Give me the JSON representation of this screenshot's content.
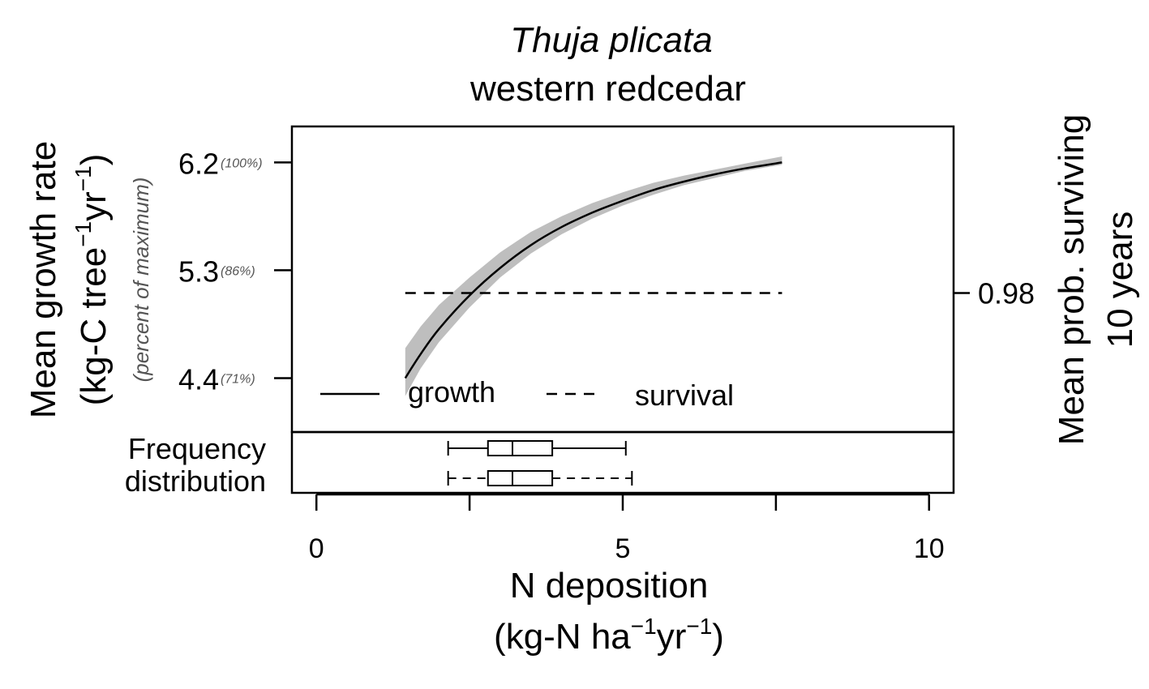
{
  "chart_data": {
    "type": "line",
    "title": "Thuja plicata",
    "subtitle": "western redcedar",
    "xlabel": {
      "line1": "N deposition",
      "line2": {
        "pre": "(kg-N ha",
        "sup1": "−1",
        "mid": "yr",
        "sup2": "−1",
        "post": ")"
      }
    },
    "ylabel_left": {
      "line1": "Mean growth rate",
      "line2": {
        "pre": "(kg-C tree",
        "sup1": "−1",
        "mid": "yr",
        "sup2": "−1",
        "post": ")"
      },
      "line3": "(percent of maximum)"
    },
    "ylabel_right": {
      "line1": "Mean prob. surviving",
      "line2": "10 years"
    },
    "x_ticks": [
      {
        "value": 0,
        "label": "0"
      },
      {
        "value": 2.5,
        "label": ""
      },
      {
        "value": 5,
        "label": "5"
      },
      {
        "value": 7.5,
        "label": ""
      },
      {
        "value": 10,
        "label": "10"
      }
    ],
    "xlim": [
      -0.4,
      10.4
    ],
    "ylim_left": [
      3.95,
      6.5
    ],
    "y_ticks_left": [
      {
        "value": 6.2,
        "label": "6.2",
        "pct": "(100%)"
      },
      {
        "value": 5.3,
        "label": "5.3",
        "pct": "(86%)"
      },
      {
        "value": 4.4,
        "label": "4.4",
        "pct": "(71%)"
      }
    ],
    "y_ticks_right": [
      {
        "value": 0.98,
        "label": "0.98"
      }
    ],
    "series": [
      {
        "name": "growth",
        "style": "solid",
        "color": "#000000",
        "x": [
          1.45,
          1.7,
          2.0,
          2.5,
          3.0,
          3.5,
          4.0,
          4.5,
          5.0,
          5.5,
          6.0,
          6.5,
          7.0,
          7.6
        ],
        "y": [
          4.4,
          4.6,
          4.81,
          5.09,
          5.32,
          5.51,
          5.66,
          5.78,
          5.88,
          5.97,
          6.04,
          6.1,
          6.15,
          6.2
        ],
        "ci_lower": [
          4.25,
          4.48,
          4.7,
          4.99,
          5.24,
          5.44,
          5.6,
          5.73,
          5.84,
          5.93,
          6.01,
          6.07,
          6.13,
          6.18
        ],
        "ci_upper": [
          4.65,
          4.83,
          5.01,
          5.24,
          5.45,
          5.62,
          5.75,
          5.86,
          5.95,
          6.03,
          6.09,
          6.14,
          6.19,
          6.25
        ],
        "ci_color": "#bebebe"
      },
      {
        "name": "survival",
        "style": "dashed",
        "color": "#000000",
        "axis": "right",
        "x": [
          1.45,
          7.6
        ],
        "y": [
          0.98,
          0.98
        ]
      }
    ],
    "legend": {
      "placement": "bottom-left",
      "entries": [
        "growth",
        "survival"
      ]
    },
    "boxplot_panel": {
      "label_line1": "Frequency",
      "label_line2": "distribution",
      "boxes": [
        {
          "style": "solid",
          "min": 2.15,
          "q1": 2.8,
          "median": 3.2,
          "q3": 3.85,
          "max": 5.05
        },
        {
          "style": "dashed",
          "min": 2.15,
          "q1": 2.8,
          "median": 3.2,
          "q3": 3.85,
          "max": 5.15
        }
      ]
    },
    "grid": false
  }
}
